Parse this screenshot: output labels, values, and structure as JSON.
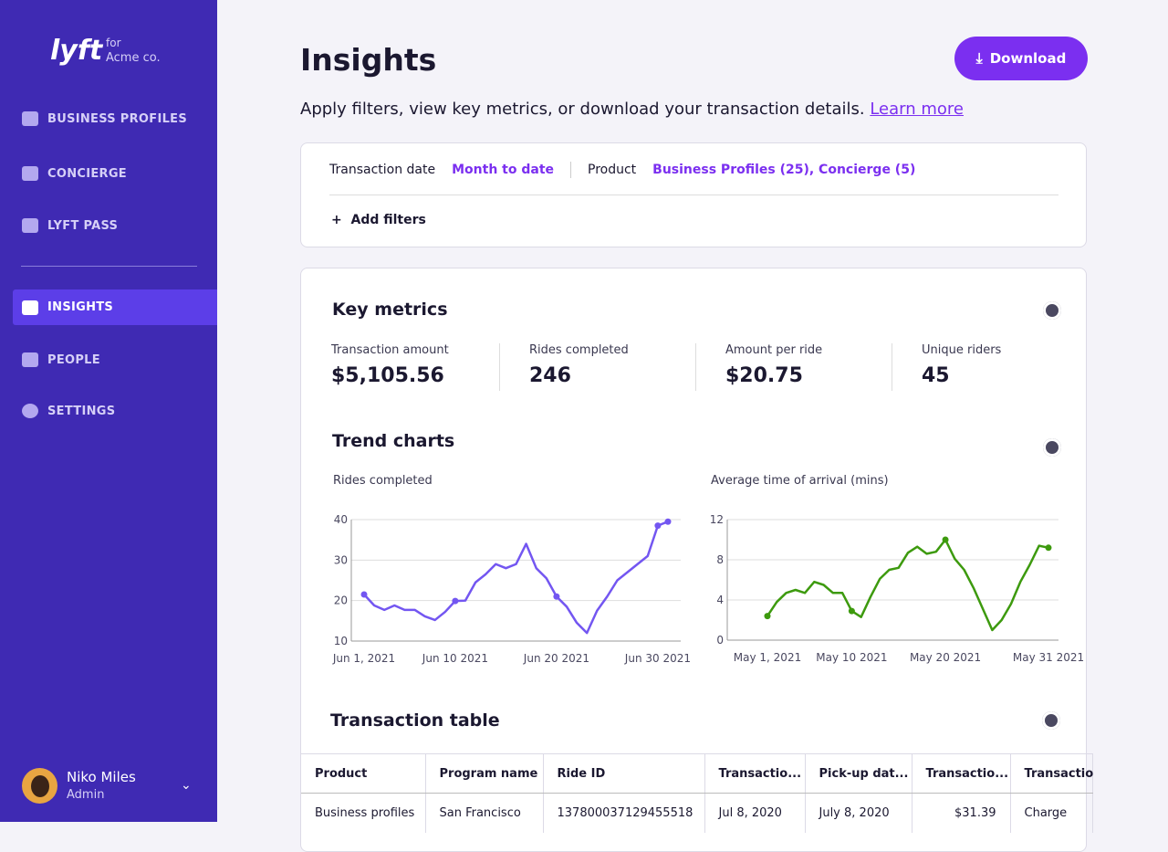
{
  "sidebar": {
    "brand": "lyft",
    "brand_for": "for",
    "company": "Acme co.",
    "nav": [
      "BUSINESS PROFILES",
      "CONCIERGE",
      "LYFT PASS",
      "INSIGHTS",
      "PEOPLE",
      "SETTINGS"
    ],
    "user": {
      "name": "Niko Miles",
      "role": "Admin"
    }
  },
  "header": {
    "title": "Insights",
    "download": "Download",
    "subtitle": "Apply filters, view key metrics, or download your transaction details.",
    "learn_more": "Learn more"
  },
  "filters": {
    "date_label": "Transaction date",
    "date_value": "Month to date",
    "product_label": "Product",
    "product_value": "Business Profiles (25), Concierge (5)",
    "add": "Add filters"
  },
  "metrics": {
    "title": "Key metrics",
    "items": [
      {
        "label": "Transaction amount",
        "value": "$5,105.56"
      },
      {
        "label": "Rides completed",
        "value": "246"
      },
      {
        "label": "Amount per ride",
        "value": "$20.75"
      },
      {
        "label": "Unique riders",
        "value": "45"
      }
    ]
  },
  "trend_title": "Trend charts",
  "chart_data": [
    {
      "type": "line",
      "title": "Rides completed",
      "color": "#7356f1",
      "x": [
        "2021-06-01",
        "2021-06-02",
        "2021-06-03",
        "2021-06-04",
        "2021-06-05",
        "2021-06-06",
        "2021-06-07",
        "2021-06-08",
        "2021-06-09",
        "2021-06-10",
        "2021-06-11",
        "2021-06-12",
        "2021-06-13",
        "2021-06-14",
        "2021-06-15",
        "2021-06-16",
        "2021-06-17",
        "2021-06-18",
        "2021-06-19",
        "2021-06-20",
        "2021-06-21",
        "2021-06-22",
        "2021-06-23",
        "2021-06-24",
        "2021-06-25",
        "2021-06-26",
        "2021-06-27",
        "2021-06-28",
        "2021-06-29",
        "2021-06-30",
        "2021-07-01"
      ],
      "values": [
        21.5,
        18.8,
        17.7,
        18.8,
        17.7,
        17.7,
        16.1,
        15.2,
        17.2,
        19.9,
        20,
        24.5,
        26.5,
        29,
        28,
        29,
        34,
        28,
        25.5,
        21,
        18.5,
        14.5,
        12,
        17.5,
        21,
        25,
        27,
        29,
        31,
        38.5,
        39.5
      ],
      "xlim": [
        "2021-06-01",
        "2021-07-01"
      ],
      "xticks": [
        {
          "value": "2021-06-01",
          "label": "Jun 1, 2021"
        },
        {
          "value": "2021-06-10",
          "label": "Jun 10 2021"
        },
        {
          "value": "2021-06-20",
          "label": "Jun 20 2021"
        },
        {
          "value": "2021-06-30",
          "label": "Jun 30 2021"
        }
      ],
      "ylim": [
        10,
        40
      ],
      "yticks": [
        10,
        20,
        30,
        40
      ],
      "grid": true
    },
    {
      "type": "line",
      "title": "Average time of arrival (mins)",
      "color": "#3d9a0e",
      "x": [
        "2021-05-01",
        "2021-05-02",
        "2021-05-03",
        "2021-05-04",
        "2021-05-05",
        "2021-05-06",
        "2021-05-07",
        "2021-05-08",
        "2021-05-09",
        "2021-05-10",
        "2021-05-11",
        "2021-05-12",
        "2021-05-13",
        "2021-05-14",
        "2021-05-15",
        "2021-05-16",
        "2021-05-17",
        "2021-05-18",
        "2021-05-19",
        "2021-05-20",
        "2021-05-21",
        "2021-05-22",
        "2021-05-23",
        "2021-05-24",
        "2021-05-25",
        "2021-05-26",
        "2021-05-27",
        "2021-05-28",
        "2021-05-29",
        "2021-05-30",
        "2021-05-31"
      ],
      "values": [
        2.4,
        3.8,
        4.7,
        5.0,
        4.7,
        5.8,
        5.5,
        4.7,
        4.7,
        2.9,
        2.3,
        4.3,
        6.1,
        7.0,
        7.2,
        8.7,
        9.3,
        8.6,
        8.8,
        10.0,
        8.1,
        7.0,
        5.2,
        3.1,
        1.0,
        2.0,
        3.6,
        5.8,
        7.5,
        9.4,
        9.2
      ],
      "xlim": [
        "2021-05-01",
        "2021-05-31"
      ],
      "xticks": [
        {
          "value": "2021-05-01",
          "label": "May 1, 2021"
        },
        {
          "value": "2021-05-10",
          "label": "May 10 2021"
        },
        {
          "value": "2021-05-20",
          "label": "May 20 2021"
        },
        {
          "value": "2021-05-31",
          "label": "May 31 2021"
        }
      ],
      "ylim": [
        0,
        12
      ],
      "yticks": [
        0,
        4,
        8,
        12
      ],
      "grid": true
    }
  ],
  "table": {
    "title": "Transaction table",
    "columns": [
      "Product",
      "Program name",
      "Ride ID",
      "Transactio...",
      "Pick-up dat...",
      "Transactio...",
      "Transactio"
    ],
    "rows": [
      [
        "Business profiles",
        "San Francisco",
        "137800037129455518",
        "Jul 8, 2020",
        "July 8, 2020",
        "$31.39",
        "Charge"
      ]
    ]
  }
}
